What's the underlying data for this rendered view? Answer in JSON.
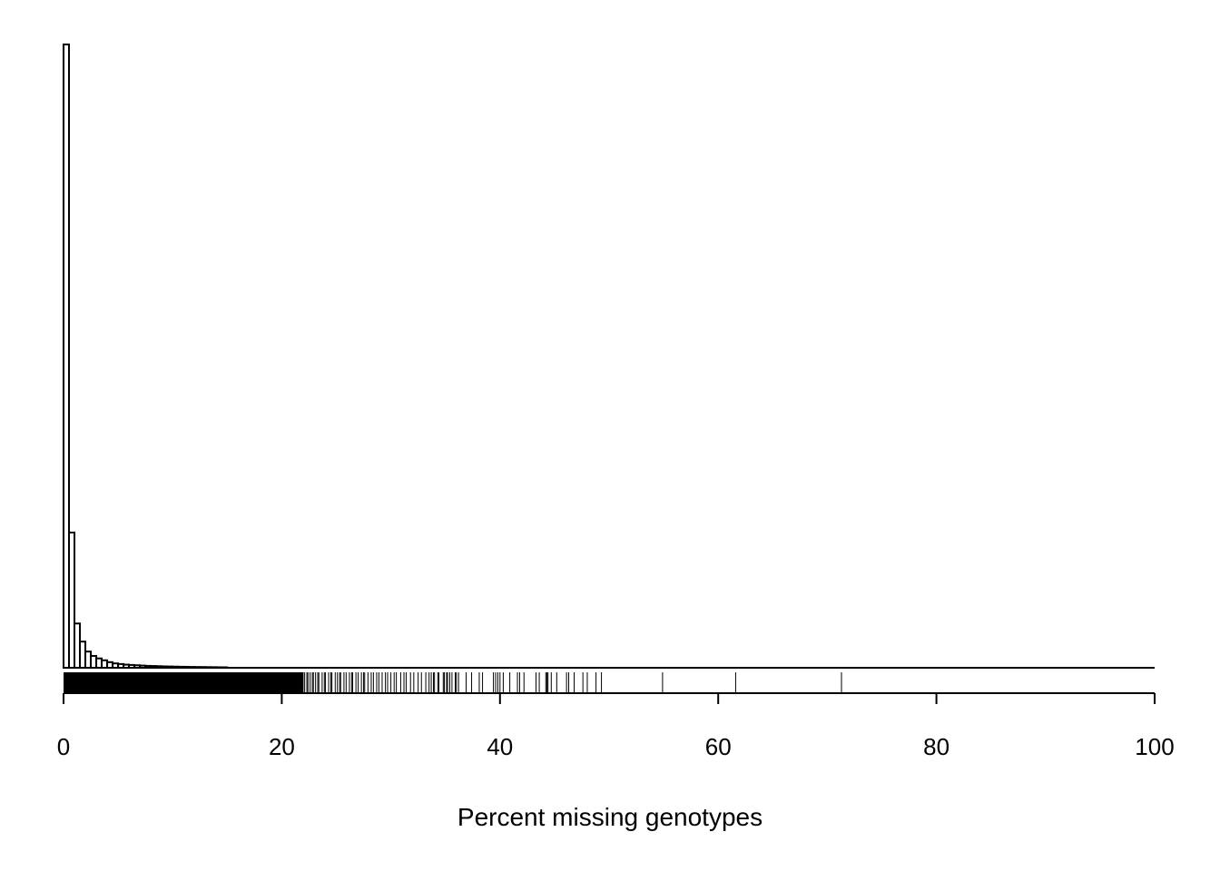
{
  "chart_data": {
    "type": "bar",
    "subtype": "histogram-with-rug",
    "title": "",
    "xlabel": "Percent missing genotypes",
    "ylabel": "",
    "xlim": [
      0,
      100
    ],
    "x_ticks": [
      0,
      20,
      40,
      60,
      80,
      100
    ],
    "x_tick_labels": [
      "0",
      "20",
      "40",
      "60",
      "80",
      "100"
    ],
    "y_axis_shown": false,
    "grid": false,
    "bin_width": 0.5,
    "bin_start": 0,
    "relative_heights": [
      1,
      0.217,
      0.071,
      0.042,
      0.026,
      0.019,
      0.015,
      0.012,
      0.009,
      0.007,
      0.006,
      0.005,
      0.0045,
      0.004,
      0.0035,
      0.003,
      0.0028,
      0.0025,
      0.0022,
      0.002,
      0.0018,
      0.0016,
      0.0015,
      0.0013,
      0.0012,
      0.0011,
      0.001,
      0.0009,
      0.0008,
      0.0007
    ],
    "rug": {
      "dense_range": [
        0,
        22
      ],
      "values": [
        22.1,
        22.3,
        22.4,
        22.6,
        22.8,
        22.9,
        23.1,
        23.3,
        23.4,
        23.7,
        23.9,
        24.0,
        24.3,
        24.5,
        24.6,
        24.9,
        25.1,
        25.3,
        25.4,
        25.7,
        25.9,
        26.2,
        26.4,
        26.5,
        26.8,
        27.0,
        27.3,
        27.5,
        27.6,
        27.9,
        28.2,
        28.4,
        28.7,
        28.9,
        29.2,
        29.5,
        29.7,
        30.0,
        30.3,
        30.5,
        30.9,
        31.2,
        31.4,
        31.8,
        32.1,
        32.5,
        32.8,
        33.2,
        33.5,
        33.7,
        33.9,
        34.0,
        34.3,
        34.4,
        34.8,
        34.9,
        35.1,
        35.2,
        35.4,
        35.6,
        35.9,
        36.0,
        36.2,
        36.9,
        37.4,
        38.1,
        38.4,
        39.4,
        39.6,
        39.8,
        40.0,
        40.3,
        40.9,
        41.6,
        41.8,
        42.2,
        43.3,
        43.6,
        44.2,
        44.3,
        44.4,
        44.7,
        45.2,
        46.1,
        46.3,
        46.8,
        47.6,
        48.0,
        48.8,
        49.3,
        54.9,
        61.6,
        71.3
      ]
    },
    "colors": {
      "bar_fill": "#ffffff",
      "bar_stroke": "#000000",
      "rug": "#000000"
    }
  }
}
